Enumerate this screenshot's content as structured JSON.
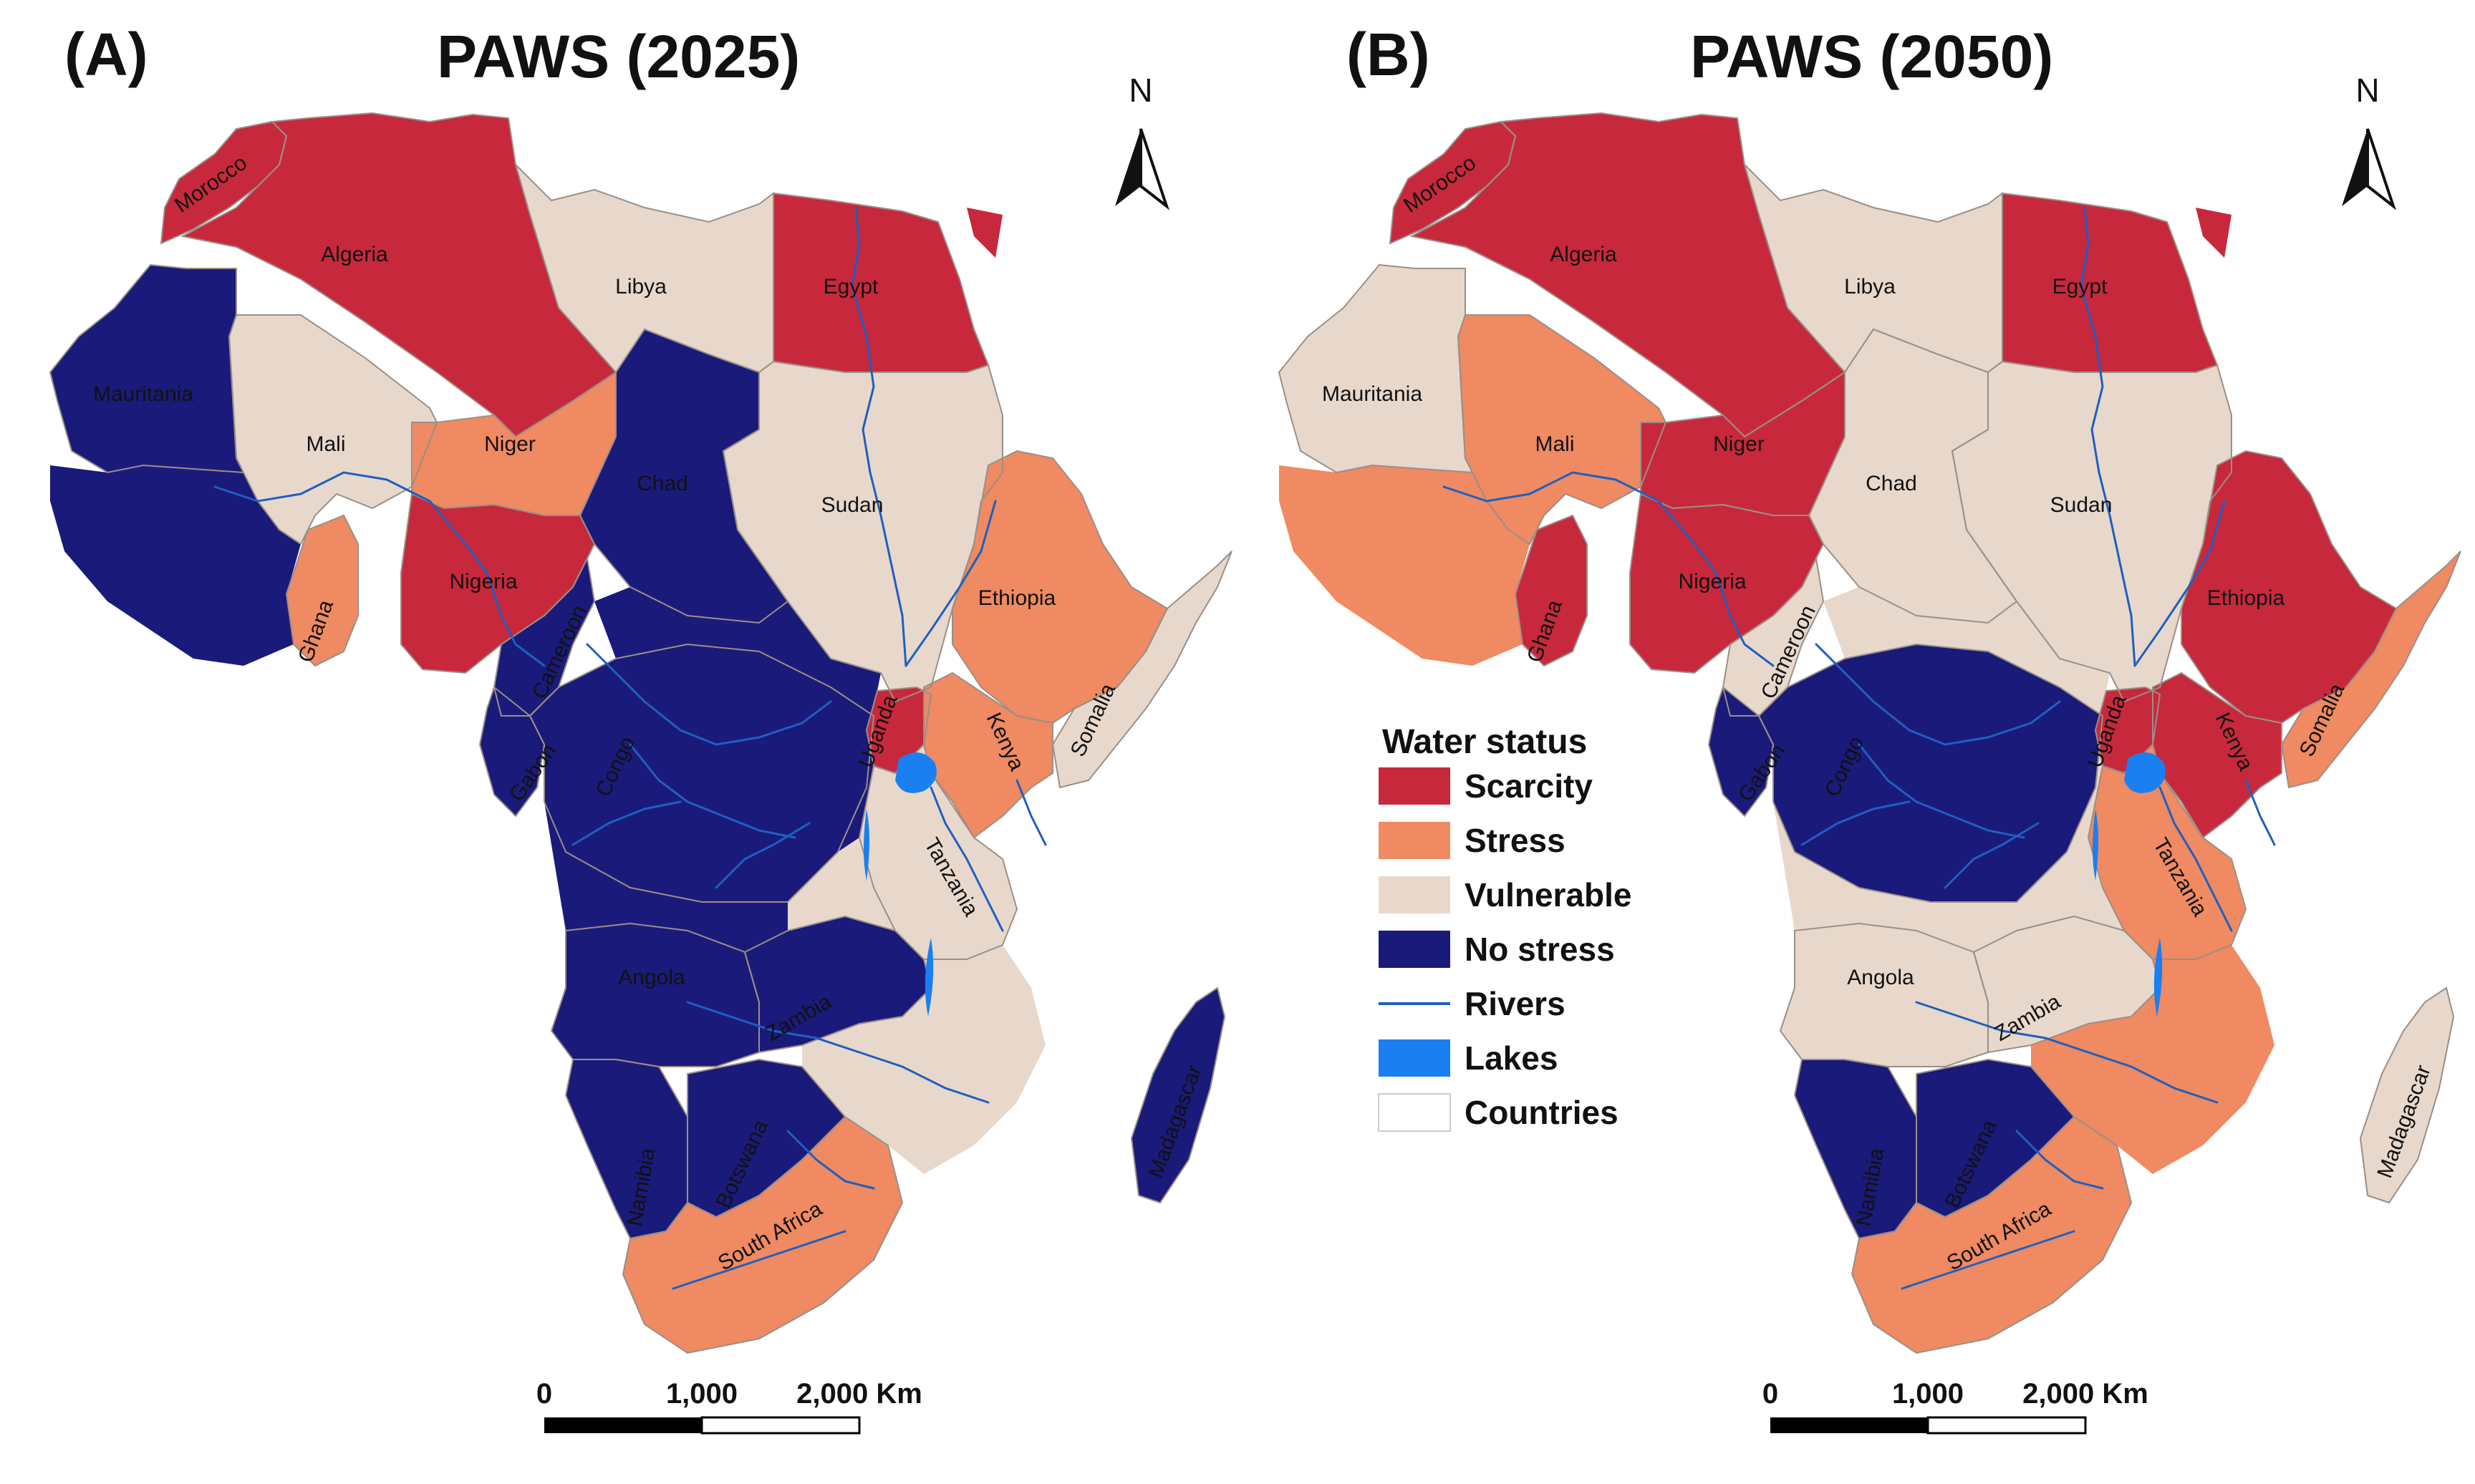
{
  "colors": {
    "scarcity": "#c8283c",
    "stress": "#ef8a62",
    "vulnerable": "#e8d8cc",
    "no_stress": "#1a1a7a",
    "rivers": "#1f5fbf",
    "lakes": "#1a7ff0",
    "countries": "#ffffff"
  },
  "panels": [
    {
      "letter": "(A)",
      "title": "PAWS (2025)",
      "north": "N",
      "scale": {
        "l0": "0",
        "l1": "1,000",
        "l2": "2,000 Km"
      },
      "countries": [
        {
          "name": "Morocco",
          "status": "scarcity"
        },
        {
          "name": "Algeria",
          "status": "scarcity"
        },
        {
          "name": "Libya",
          "status": "vulnerable"
        },
        {
          "name": "Egypt",
          "status": "scarcity"
        },
        {
          "name": "Mauritania",
          "status": "no_stress"
        },
        {
          "name": "Mali",
          "status": "vulnerable"
        },
        {
          "name": "Niger",
          "status": "stress"
        },
        {
          "name": "Chad",
          "status": "no_stress"
        },
        {
          "name": "Sudan",
          "status": "vulnerable"
        },
        {
          "name": "Ethiopia",
          "status": "stress"
        },
        {
          "name": "Somalia",
          "status": "vulnerable"
        },
        {
          "name": "Ghana",
          "status": "stress"
        },
        {
          "name": "Nigeria",
          "status": "scarcity"
        },
        {
          "name": "Cameroon",
          "status": "no_stress"
        },
        {
          "name": "Gabon",
          "status": "no_stress"
        },
        {
          "name": "Congo",
          "status": "no_stress"
        },
        {
          "name": "Uganda",
          "status": "scarcity"
        },
        {
          "name": "Kenya",
          "status": "stress"
        },
        {
          "name": "Tanzania",
          "status": "vulnerable"
        },
        {
          "name": "Angola",
          "status": "no_stress"
        },
        {
          "name": "Zambia",
          "status": "no_stress"
        },
        {
          "name": "Namibia",
          "status": "no_stress"
        },
        {
          "name": "Botswana",
          "status": "no_stress"
        },
        {
          "name": "South Africa",
          "status": "stress"
        },
        {
          "name": "Madagascar",
          "status": "no_stress"
        }
      ]
    },
    {
      "letter": "(B)",
      "title": "PAWS (2050)",
      "north": "N",
      "scale": {
        "l0": "0",
        "l1": "1,000",
        "l2": "2,000 Km"
      },
      "countries": [
        {
          "name": "Morocco",
          "status": "scarcity"
        },
        {
          "name": "Algeria",
          "status": "scarcity"
        },
        {
          "name": "Libya",
          "status": "vulnerable"
        },
        {
          "name": "Egypt",
          "status": "scarcity"
        },
        {
          "name": "Mauritania",
          "status": "vulnerable"
        },
        {
          "name": "Mali",
          "status": "stress"
        },
        {
          "name": "Niger",
          "status": "scarcity"
        },
        {
          "name": "Chad",
          "status": "vulnerable"
        },
        {
          "name": "Sudan",
          "status": "vulnerable"
        },
        {
          "name": "Ethiopia",
          "status": "scarcity"
        },
        {
          "name": "Somalia",
          "status": "stress"
        },
        {
          "name": "Ghana",
          "status": "scarcity"
        },
        {
          "name": "Nigeria",
          "status": "scarcity"
        },
        {
          "name": "Cameroon",
          "status": "vulnerable"
        },
        {
          "name": "Gabon",
          "status": "no_stress"
        },
        {
          "name": "Congo",
          "status": "no_stress"
        },
        {
          "name": "Uganda",
          "status": "scarcity"
        },
        {
          "name": "Kenya",
          "status": "scarcity"
        },
        {
          "name": "Tanzania",
          "status": "stress"
        },
        {
          "name": "Angola",
          "status": "vulnerable"
        },
        {
          "name": "Zambia",
          "status": "vulnerable"
        },
        {
          "name": "Namibia",
          "status": "no_stress"
        },
        {
          "name": "Botswana",
          "status": "no_stress"
        },
        {
          "name": "South Africa",
          "status": "stress"
        },
        {
          "name": "Madagascar",
          "status": "vulnerable"
        }
      ]
    }
  ],
  "legend": {
    "title": "Water status",
    "items": [
      {
        "key": "scarcity",
        "label": "Scarcity",
        "kind": "swatch"
      },
      {
        "key": "stress",
        "label": "Stress",
        "kind": "swatch"
      },
      {
        "key": "vulnerable",
        "label": "Vulnerable",
        "kind": "swatch"
      },
      {
        "key": "no_stress",
        "label": "No stress",
        "kind": "swatch"
      },
      {
        "key": "rivers",
        "label": "Rivers",
        "kind": "line"
      },
      {
        "key": "lakes",
        "label": "Lakes",
        "kind": "swatch"
      },
      {
        "key": "countries",
        "label": "Countries",
        "kind": "outline"
      }
    ]
  }
}
